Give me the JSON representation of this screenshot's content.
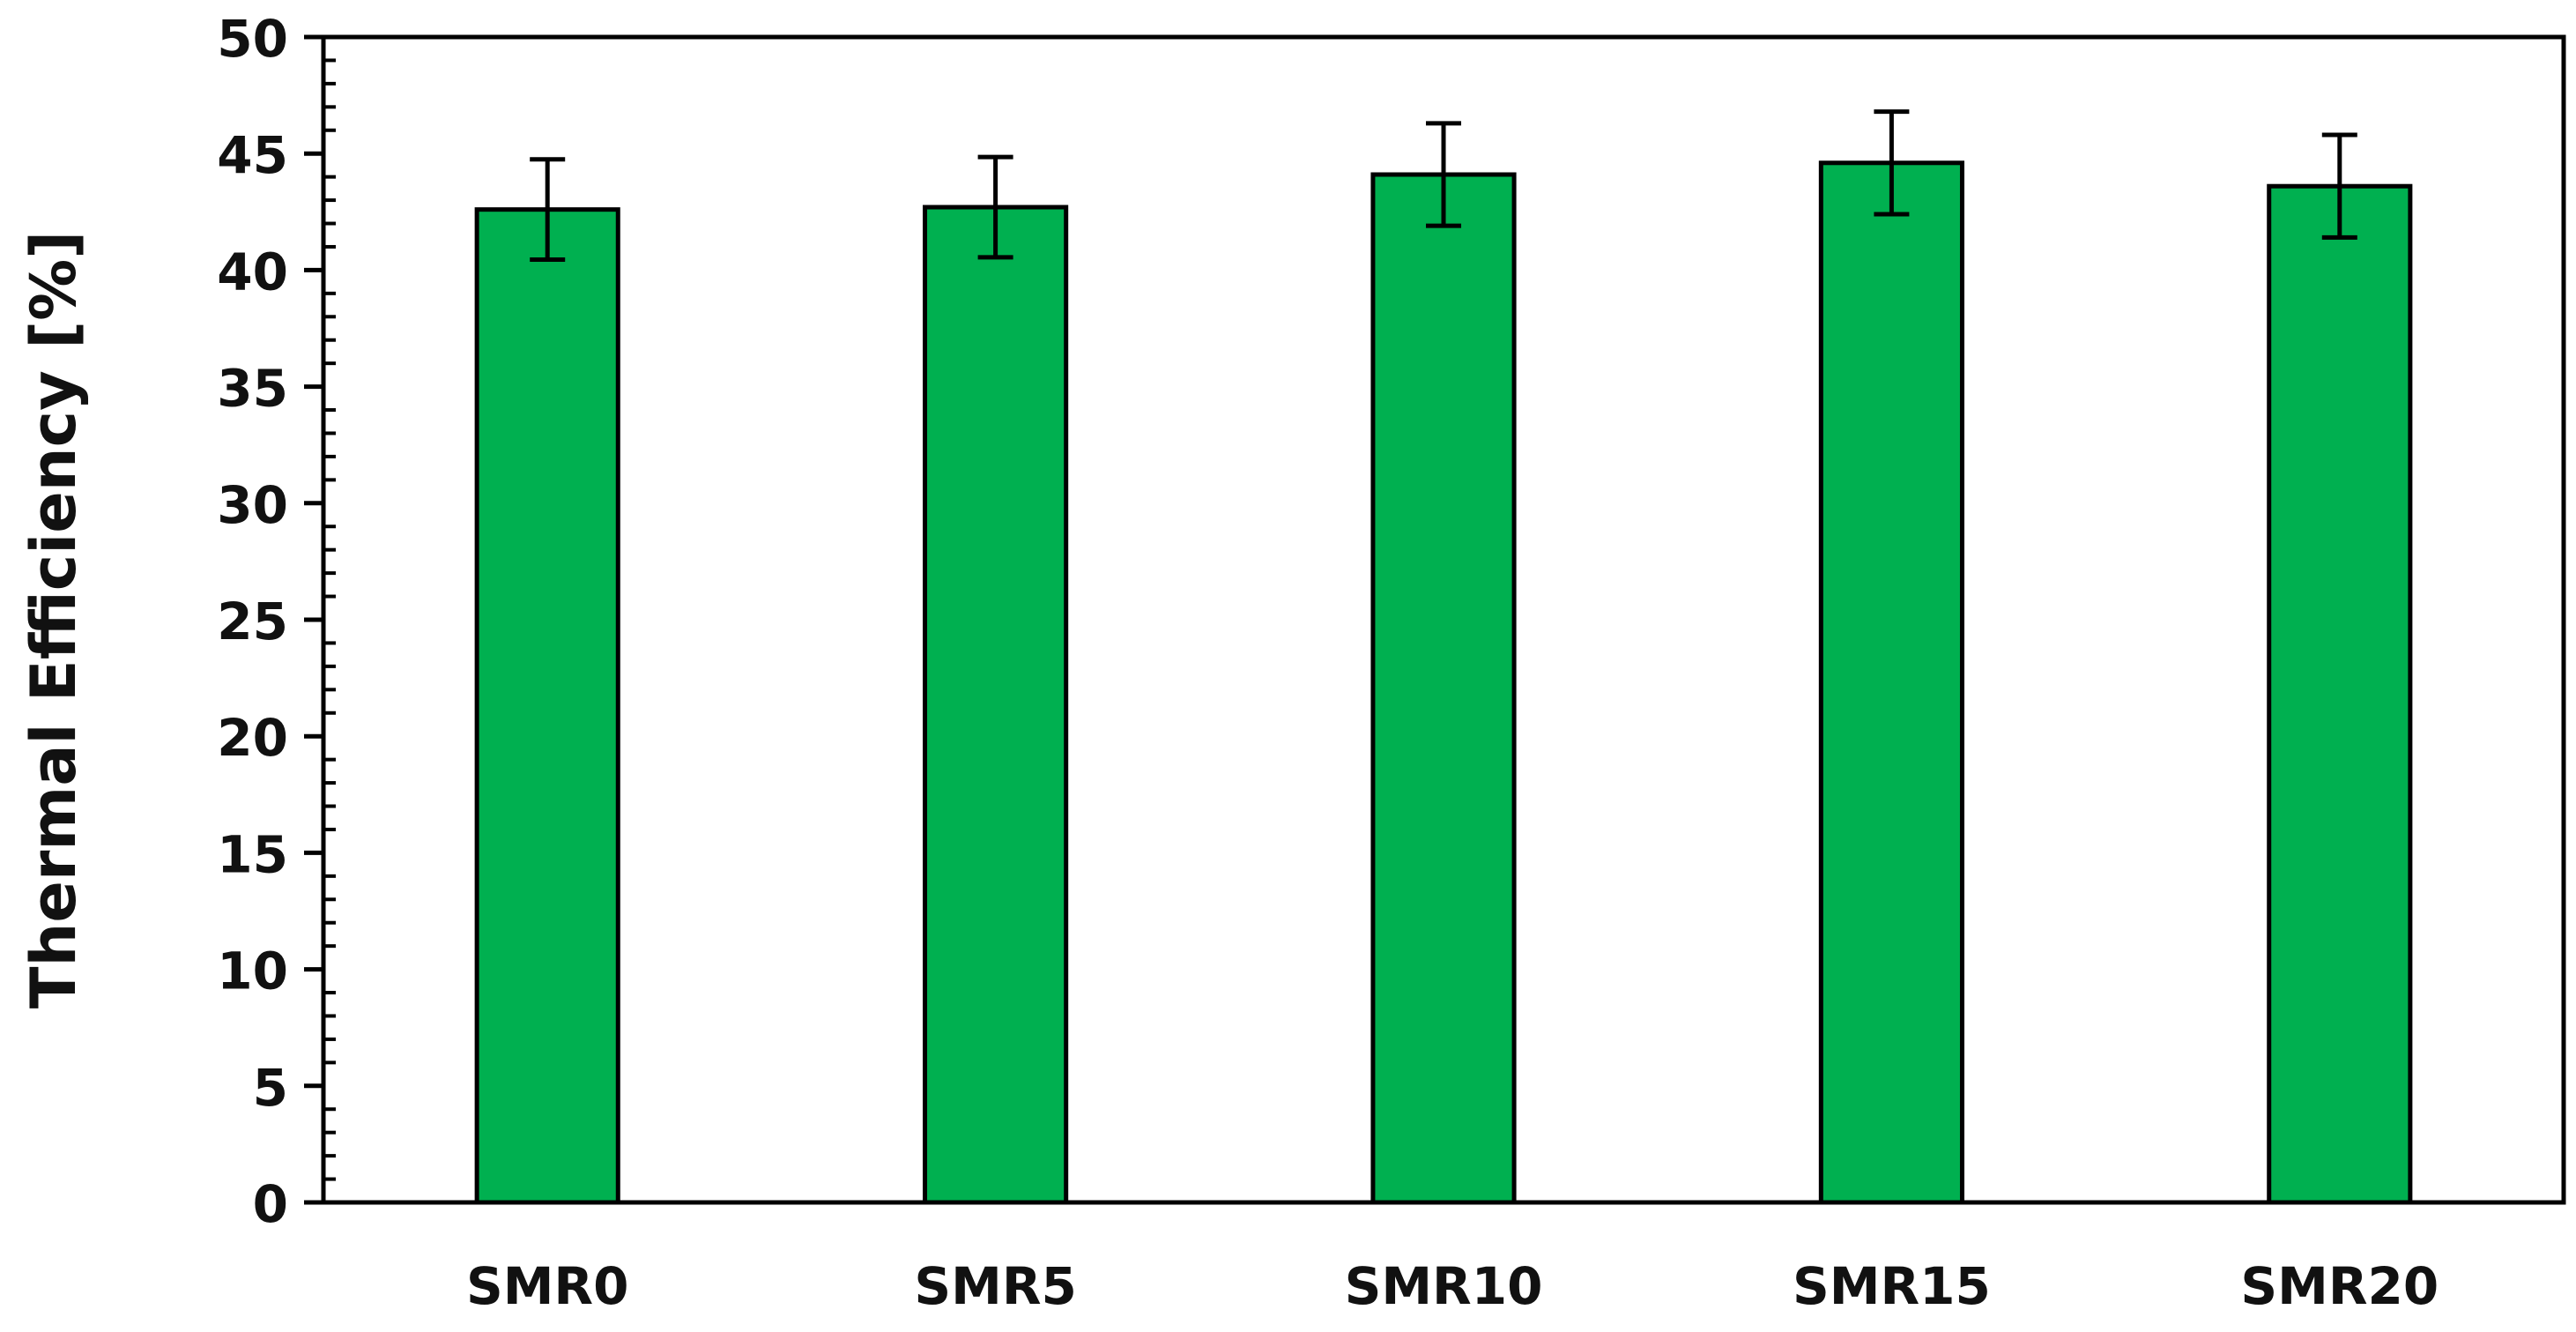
{
  "chart_data": {
    "type": "bar",
    "title": "",
    "xlabel": "",
    "ylabel": "Thermal Efficiency [%]",
    "categories": [
      "SMR0",
      "SMR5",
      "SMR10",
      "SMR15",
      "SMR20"
    ],
    "series": [
      {
        "values": [
          42.6,
          42.7,
          44.1,
          44.6,
          43.6
        ],
        "error": [
          2.15,
          2.15,
          2.2,
          2.2,
          2.2
        ]
      }
    ],
    "ylim": [
      0,
      50
    ],
    "yticks": [
      0,
      5,
      10,
      15,
      20,
      25,
      30,
      35,
      40,
      45,
      50
    ],
    "grid": false,
    "legend": "none",
    "colors": {
      "bar_fill": "#00B050",
      "bar_stroke": "#000000",
      "axis": "#000000"
    }
  }
}
